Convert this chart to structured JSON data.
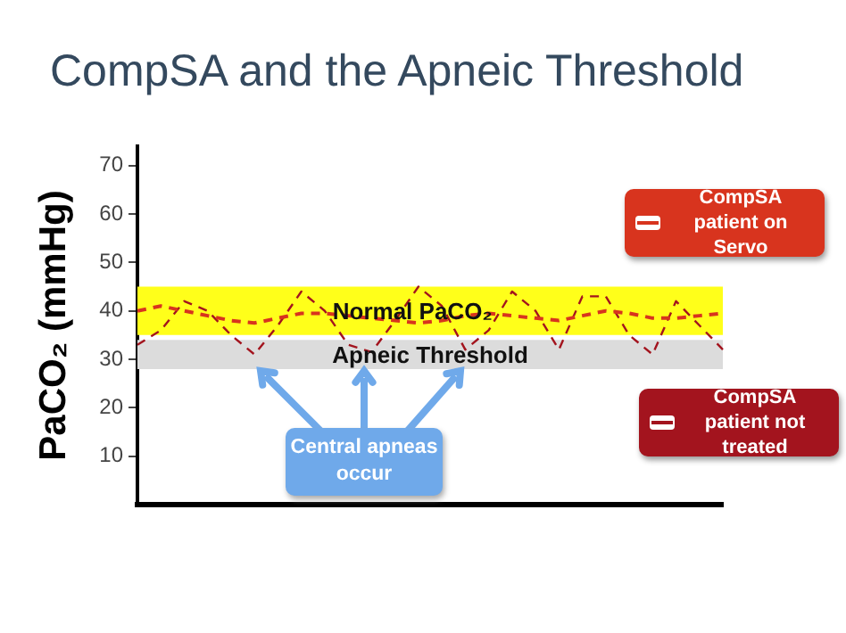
{
  "chart_data": {
    "type": "line",
    "title": "CompSA and the Apneic Threshold",
    "ylabel": "PaCO₂ (mmHg)",
    "categories": [
      null,
      null,
      null,
      null,
      null,
      null,
      null,
      null,
      null,
      null,
      null,
      null,
      null,
      null,
      null,
      null,
      null,
      null,
      null,
      null,
      null,
      null,
      null,
      null,
      null,
      null
    ],
    "ylim": [
      0,
      74
    ],
    "yticks": [
      10,
      20,
      30,
      40,
      50,
      60,
      70
    ],
    "tick_labels": "y",
    "grid": false,
    "legend": "right",
    "marker": "none",
    "line_style": "dashed",
    "series": [
      {
        "name": "CompSA patient on Servo",
        "color": "#d8341e",
        "values": [
          40,
          41,
          40,
          39,
          38,
          37.5,
          38.5,
          39.5,
          39.5,
          39,
          38.5,
          38,
          37.5,
          38,
          39,
          39.5,
          39,
          38.5,
          38,
          39,
          40,
          39.5,
          38.5,
          38.5,
          39,
          39.5
        ]
      },
      {
        "name": "CompSA patient not treated",
        "color": "#a3141e",
        "values": [
          33,
          36,
          42,
          40,
          35,
          31,
          37,
          44,
          40,
          33,
          31.5,
          38,
          45,
          41,
          32,
          36,
          44,
          40,
          32,
          43,
          43,
          35,
          31,
          42,
          37,
          32
        ]
      }
    ],
    "bands": [
      {
        "axis": "y",
        "from": 35,
        "to": 45,
        "label": "Normal PaCO₂",
        "color": "#ffff1a"
      },
      {
        "axis": "y",
        "from": 28,
        "to": 34,
        "label": "Apneic Threshold",
        "color": "#dcdcdc"
      }
    ],
    "annotations": [
      "Central apneas occur"
    ]
  }
}
